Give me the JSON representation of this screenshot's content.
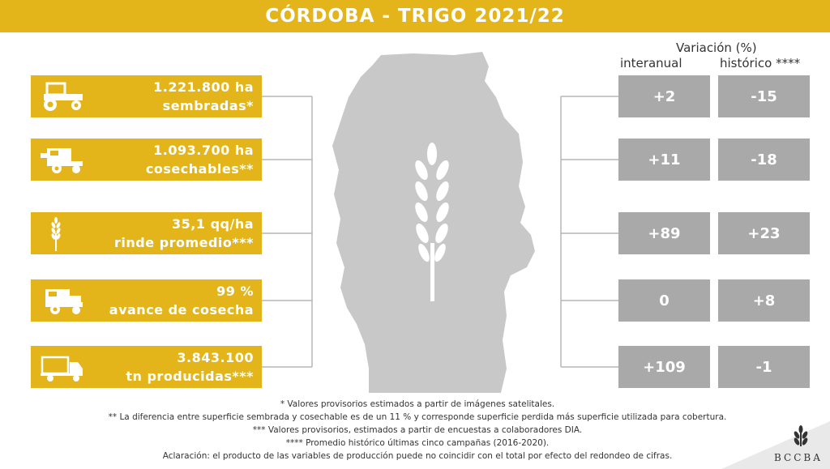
{
  "title": "CÓRDOBA - TRIGO 2021/22",
  "variation": {
    "title": "Variación (%)",
    "col_interanual": "interanual",
    "col_historico": "histórico ****"
  },
  "metrics": [
    {
      "icon": "tractor-icon",
      "value": "1.221.800 ha",
      "label": "sembradas*",
      "interanual": "+2",
      "historico": "-15"
    },
    {
      "icon": "combine-harvester-icon",
      "value": "1.093.700 ha",
      "label": "cosechables**",
      "interanual": "+11",
      "historico": "-18"
    },
    {
      "icon": "wheat-icon",
      "value": "35,1 qq/ha",
      "label": "rinde promedio***",
      "interanual": "+89",
      "historico": "+23"
    },
    {
      "icon": "harvester-icon",
      "value": "99 %",
      "label": "avance de cosecha",
      "interanual": "0",
      "historico": "+8"
    },
    {
      "icon": "truck-icon",
      "value": "3.843.100",
      "label": "tn producidas***",
      "interanual": "+109",
      "historico": "-1"
    }
  ],
  "footnotes": [
    "* Valores provisorios estimados a partir de imágenes satelitales.",
    "** La diferencia entre superficie sembrada y cosechable es de un 11 % y corresponde superficie perdida más superficie utilizada para cobertura.",
    "*** Valores provisorios, estimados a partir de encuestas a colaboradores DIA.",
    "**** Promedio histórico últimas cinco campañas (2016-2020).",
    "Aclaración: el producto de las variables de producción puede no coincidir con el total por efecto del redondeo de cifras."
  ],
  "logo_text": "BCCBA",
  "colors": {
    "gold": "#e3b51b",
    "gray_box": "#a9a9a9",
    "map": "#c8c8c8"
  }
}
